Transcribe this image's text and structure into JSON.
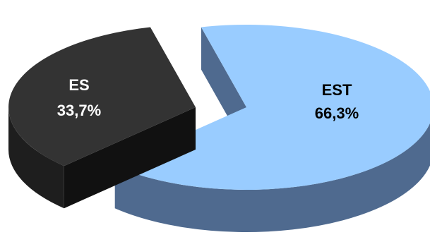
{
  "chart_data": {
    "type": "pie",
    "style": "3d-exploded",
    "title": "",
    "slices": [
      {
        "label": "EST",
        "value": 66.3,
        "value_label": "66,3%",
        "color": "#99ccff",
        "side_color": "#4f6a8f",
        "label_color": "#000000"
      },
      {
        "label": "ES",
        "value": 33.7,
        "value_label": "33,7%",
        "color": "#333333",
        "side_color": "#1e1e1e",
        "label_color": "#ffffff"
      }
    ]
  }
}
